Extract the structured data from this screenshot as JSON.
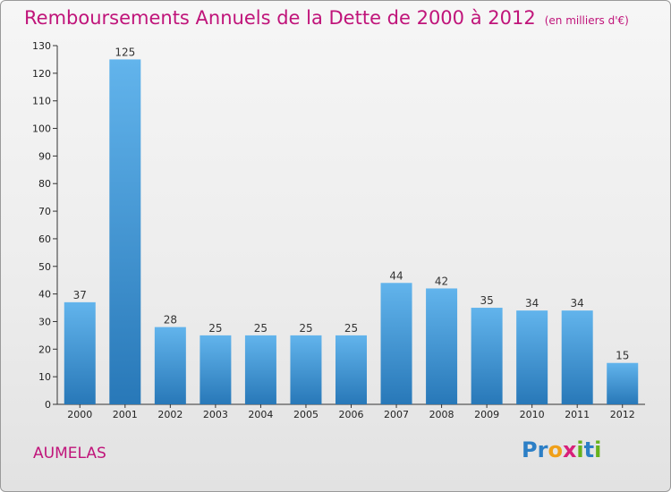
{
  "header": {
    "title": "Remboursements Annuels de la Dette de 2000 à 2012",
    "subtitle": "(en milliers d'€)"
  },
  "footer": {
    "commune": "AUMELAS",
    "logo_letters": [
      "P",
      "r",
      "o",
      "x",
      "i",
      "t",
      "i"
    ]
  },
  "colors": {
    "title": "#c0147a",
    "bar_light": "#62b4ec",
    "bar_dark": "#2878b8",
    "logo": [
      "#2c7fc6",
      "#2c7fc6",
      "#f0a019",
      "#d8207a",
      "#66b21c",
      "#2c7fc6",
      "#66b21c"
    ]
  },
  "chart_data": {
    "type": "bar",
    "title": "Remboursements Annuels de la Dette de 2000 à 2012",
    "subtitle": "(en milliers d'€)",
    "categories": [
      "2000",
      "2001",
      "2002",
      "2003",
      "2004",
      "2005",
      "2006",
      "2007",
      "2008",
      "2009",
      "2010",
      "2011",
      "2012"
    ],
    "values": [
      37,
      125,
      28,
      25,
      25,
      25,
      25,
      44,
      42,
      35,
      34,
      34,
      15
    ],
    "data_labels": [
      "37",
      "125",
      "28",
      "25",
      "25",
      "25",
      "25",
      "44",
      "42",
      "35",
      "34",
      "34",
      "15"
    ],
    "y_ticks": [
      0,
      10,
      20,
      30,
      40,
      50,
      60,
      70,
      80,
      90,
      100,
      110,
      120,
      130
    ],
    "ylim": [
      0,
      130
    ],
    "grid": false,
    "legend": "none"
  }
}
